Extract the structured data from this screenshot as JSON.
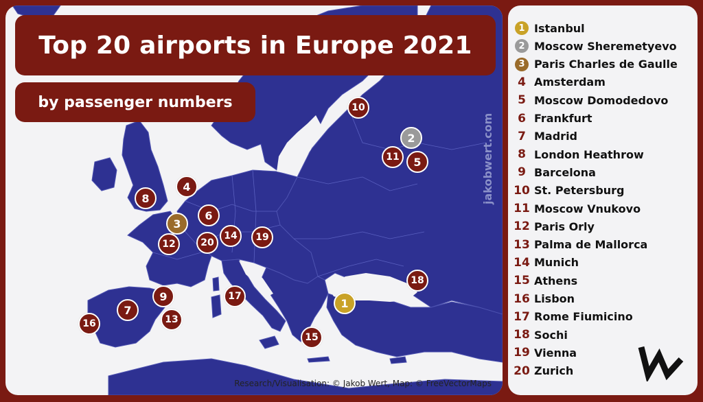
{
  "title": "Top 20 airports in Europe 2021",
  "subtitle": "by passenger numbers",
  "watermark": "jakobwert.com",
  "credit": "Research/Visualisation: © Jakob Wert, Map: © FreeVectorMaps",
  "colors": {
    "frame": "#7a1a12",
    "land": "#2e3192",
    "sea": "#f3f3f5",
    "border_lines": "#4d52b0",
    "gold": "#c9a227",
    "silver": "#9a9a9a",
    "bronze": "#9a6b2a",
    "marker": "#7a1a12"
  },
  "airports": [
    {
      "rank": "1",
      "name": "Istanbul",
      "medal": "gold"
    },
    {
      "rank": "2",
      "name": "Moscow Sheremetyevo",
      "medal": "silver"
    },
    {
      "rank": "3",
      "name": "Paris Charles de Gaulle",
      "medal": "bronze"
    },
    {
      "rank": "4",
      "name": "Amsterdam",
      "medal": ""
    },
    {
      "rank": "5",
      "name": "Moscow Domodedovo",
      "medal": ""
    },
    {
      "rank": "6",
      "name": "Frankfurt",
      "medal": ""
    },
    {
      "rank": "7",
      "name": "Madrid",
      "medal": ""
    },
    {
      "rank": "8",
      "name": "London Heathrow",
      "medal": ""
    },
    {
      "rank": "9",
      "name": "Barcelona",
      "medal": ""
    },
    {
      "rank": "10",
      "name": "St. Petersburg",
      "medal": ""
    },
    {
      "rank": "11",
      "name": "Moscow Vnukovo",
      "medal": ""
    },
    {
      "rank": "12",
      "name": "Paris Orly",
      "medal": ""
    },
    {
      "rank": "13",
      "name": "Palma de Mallorca",
      "medal": ""
    },
    {
      "rank": "14",
      "name": "Munich",
      "medal": ""
    },
    {
      "rank": "15",
      "name": "Athens",
      "medal": ""
    },
    {
      "rank": "16",
      "name": "Lisbon",
      "medal": ""
    },
    {
      "rank": "17",
      "name": "Rome Fiumicino",
      "medal": ""
    },
    {
      "rank": "18",
      "name": "Sochi",
      "medal": ""
    },
    {
      "rank": "19",
      "name": "Vienna",
      "medal": ""
    },
    {
      "rank": "20",
      "name": "Zurich",
      "medal": ""
    }
  ]
}
